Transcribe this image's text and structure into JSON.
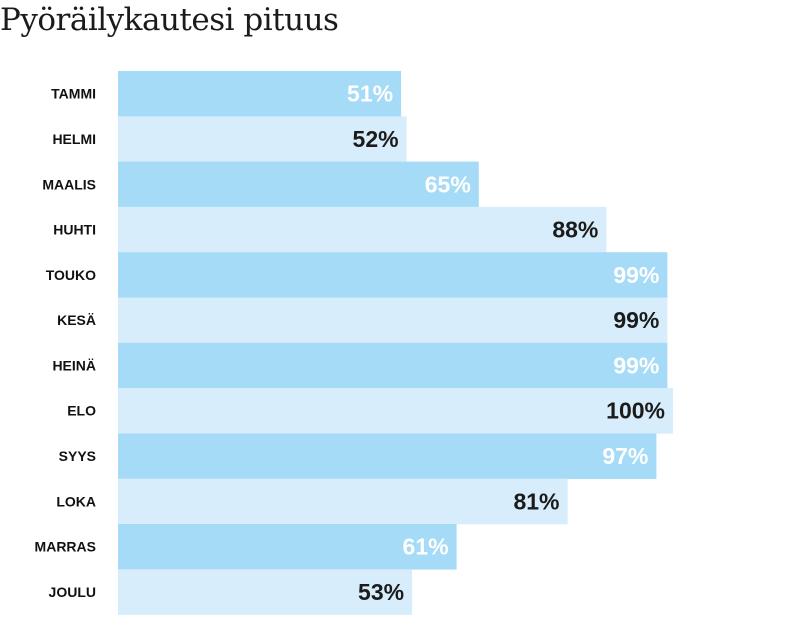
{
  "chart_data": {
    "type": "bar",
    "orientation": "horizontal",
    "title": "Pyöräilykautesi pituus",
    "categories": [
      "TAMMI",
      "HELMI",
      "MAALIS",
      "HUHTI",
      "TOUKO",
      "KESÄ",
      "HEINÄ",
      "ELO",
      "SYYS",
      "LOKA",
      "MARRAS",
      "JOULU"
    ],
    "values": [
      51,
      52,
      65,
      88,
      99,
      99,
      99,
      100,
      97,
      81,
      61,
      53
    ],
    "value_labels": [
      "51%",
      "52%",
      "65%",
      "88%",
      "99%",
      "99%",
      "99%",
      "100%",
      "97%",
      "81%",
      "61%",
      "53%"
    ],
    "xlim": [
      0,
      100
    ],
    "grid": false,
    "legend": "none",
    "colors": {
      "bar_dark": "#a6dbf7",
      "bar_light": "#d7edfb",
      "label_on_dark": "#ffffff",
      "label_on_light": "#1b1b1b"
    }
  }
}
